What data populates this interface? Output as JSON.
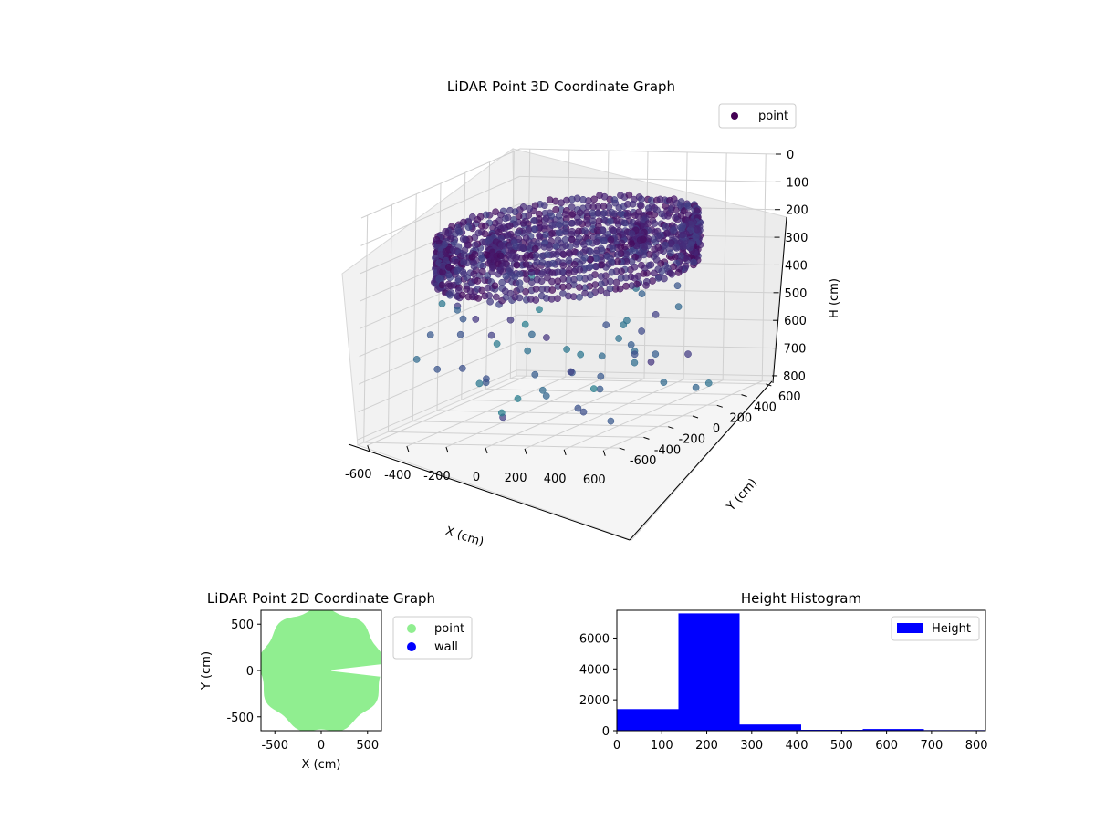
{
  "figure": {
    "background": "#ffffff"
  },
  "chart_data": [
    {
      "type": "scatter",
      "projection": "3d",
      "title": "LiDAR Point 3D Coordinate Graph",
      "xlabel": "X (cm)",
      "ylabel": "Y (cm)",
      "zlabel": "H (cm)",
      "xlim": [
        -650,
        650
      ],
      "ylim": [
        -650,
        650
      ],
      "zlim": [
        820,
        0
      ],
      "zaxis_inverted": true,
      "xticks": [
        -600,
        -400,
        -200,
        0,
        200,
        400,
        600
      ],
      "yticks": [
        -600,
        -400,
        -200,
        0,
        200,
        400,
        600
      ],
      "zticks": [
        0,
        100,
        200,
        300,
        400,
        500,
        600,
        700,
        800
      ],
      "colormap": "viridis",
      "legend": {
        "position": "top-right",
        "entries": [
          {
            "label": "point",
            "color": "#440154"
          }
        ]
      },
      "grid": true,
      "series": [
        {
          "name": "point",
          "shape": "ring",
          "description": "dense cylindrical ring of points, radius ~560 cm, heights ~150-300 cm",
          "radius": 560,
          "h_range": [
            150,
            300
          ]
        },
        {
          "name": "point",
          "shape": "ring",
          "description": "inner ring, radius ~330 cm, heights ~150-250 cm",
          "radius": 330,
          "h_range": [
            150,
            250
          ]
        },
        {
          "name": "point",
          "shape": "scatter",
          "description": "sparse lower points, heights ~350-800 cm",
          "h_range": [
            350,
            800
          ]
        }
      ]
    },
    {
      "type": "scatter",
      "title": "LiDAR Point 2D Coordinate Graph",
      "xlabel": "X (cm)",
      "ylabel": "Y (cm)",
      "xlim": [
        -650,
        650
      ],
      "ylim": [
        -650,
        650
      ],
      "xticks": [
        -500,
        0,
        500
      ],
      "yticks": [
        -500,
        0,
        500
      ],
      "grid": false,
      "legend": {
        "position": "outside-right",
        "entries": [
          {
            "label": "point",
            "color": "#90ee90"
          },
          {
            "label": "wall",
            "color": "#0000ff"
          }
        ]
      },
      "series": [
        {
          "name": "point",
          "color": "#90ee90",
          "description": "filled disk of points, radius ~650 cm, with a notch on the right near y=0"
        },
        {
          "name": "wall",
          "color": "#0000ff",
          "values": []
        }
      ]
    },
    {
      "type": "bar",
      "subtype": "histogram",
      "title": "Height Histogram",
      "xlim": [
        0,
        820
      ],
      "ylim": [
        0,
        7800
      ],
      "xticks": [
        0,
        100,
        200,
        300,
        400,
        500,
        600,
        700,
        800
      ],
      "yticks": [
        0,
        2000,
        4000,
        6000
      ],
      "color": "#0000ff",
      "legend": {
        "position": "top-right",
        "entries": [
          {
            "label": "Height",
            "color": "#0000ff"
          }
        ]
      },
      "bins": [
        {
          "x0": 0,
          "x1": 137,
          "count": 1400
        },
        {
          "x0": 137,
          "x1": 273,
          "count": 7600
        },
        {
          "x0": 273,
          "x1": 410,
          "count": 400
        },
        {
          "x0": 410,
          "x1": 547,
          "count": 60
        },
        {
          "x0": 547,
          "x1": 683,
          "count": 110
        },
        {
          "x0": 683,
          "x1": 820,
          "count": 40
        }
      ]
    }
  ]
}
